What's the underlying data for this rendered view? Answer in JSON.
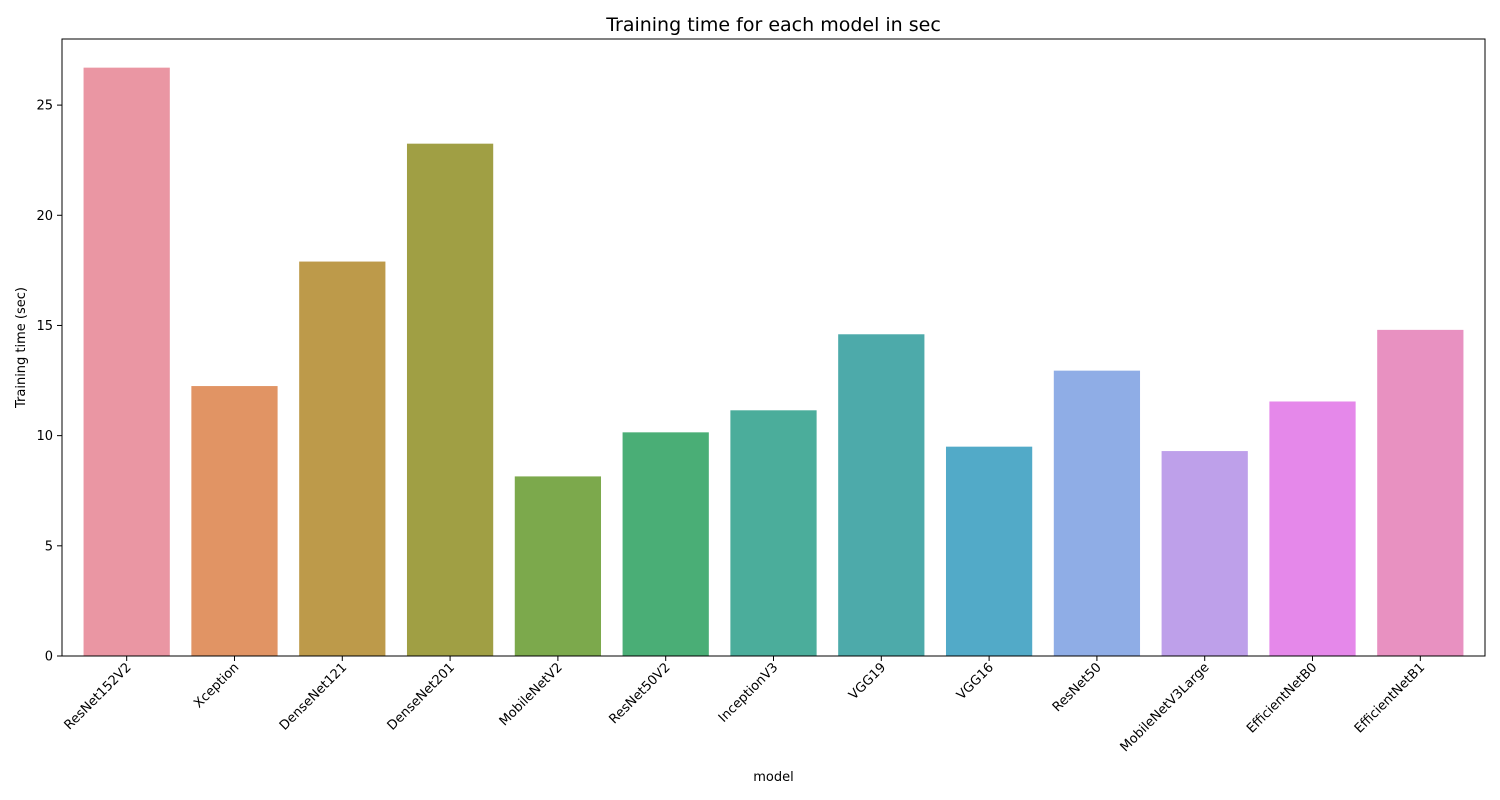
{
  "chart_data": {
    "type": "bar",
    "title": "Training time for each model in sec",
    "xlabel": "model",
    "ylabel": "Training time (sec)",
    "categories": [
      "ResNet152V2",
      "Xception",
      "DenseNet121",
      "DenseNet201",
      "MobileNetV2",
      "ResNet50V2",
      "InceptionV3",
      "VGG19",
      "VGG16",
      "ResNet50",
      "MobileNetV3Large",
      "EfficientNetB0",
      "EfficientNetB1"
    ],
    "values": [
      26.7,
      12.25,
      17.9,
      23.25,
      8.15,
      10.15,
      11.15,
      14.6,
      9.5,
      12.95,
      9.3,
      11.55,
      14.8
    ],
    "colors": [
      "#ea96a3",
      "#e19464",
      "#bd9a4a",
      "#a09f44",
      "#7ca94c",
      "#4aae76",
      "#4bad9b",
      "#4daaaa",
      "#52aac8",
      "#8fadE6",
      "#bea0ea",
      "#e588ea",
      "#e891c1"
    ],
    "ylim": [
      0,
      28
    ],
    "yticks": [
      0,
      5,
      10,
      15,
      20,
      25
    ],
    "grid": false,
    "legend": "none"
  }
}
